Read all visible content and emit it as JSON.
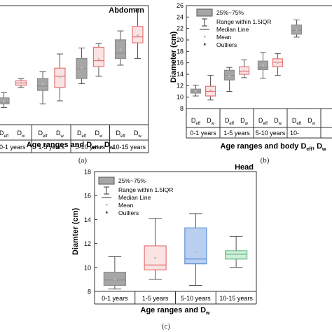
{
  "captions": [
    "(a)",
    "(b)",
    "(c)"
  ],
  "legend_items": {
    "box": "25%~75%",
    "whisker": "Range within 1.5IQR",
    "median": "Median Line",
    "mean": "Mean",
    "outliers": "Outliers"
  },
  "colors": {
    "gray": "#8c8c8c",
    "red": "#e57373",
    "blue": "#5b8fd6",
    "green": "#66c08a"
  },
  "chart_data": [
    {
      "type": "box",
      "title": "Abdomen",
      "ylabel": "",
      "xlabel_main": "Age ranges and D",
      "xlabel_sub1": "eff",
      "xlabel_mid": " , D",
      "xlabel_sub2": "w",
      "groups": [
        "0-1 years",
        "1-5 years",
        "5-10 years",
        "10-15 years"
      ],
      "subcategories": [
        "D_eff",
        "D_w"
      ],
      "ylim": [
        8,
        24
      ],
      "boxes": [
        {
          "group": "0-1 years",
          "measure": "D_eff",
          "color": "gray",
          "min": 10.3,
          "q1": 10.8,
          "median": 11.0,
          "q3": 11.6,
          "max": 12.3,
          "mean": 11.1
        },
        {
          "group": "0-1 years",
          "measure": "D_w",
          "color": "red",
          "min": 13.0,
          "q1": 13.3,
          "median": 13.6,
          "q3": 13.9,
          "max": 14.2,
          "mean": 13.6
        },
        {
          "group": "1-5 years",
          "measure": "D_eff",
          "color": "gray",
          "min": 10.8,
          "q1": 12.6,
          "median": 13.2,
          "q3": 14.2,
          "max": 15.1,
          "mean": 13.4
        },
        {
          "group": "1-5 years",
          "measure": "D_w",
          "color": "red",
          "min": 11.2,
          "q1": 13.0,
          "median": 14.5,
          "q3": 15.6,
          "max": 17.5,
          "mean": 14.4
        },
        {
          "group": "5-10 years",
          "measure": "D_eff",
          "color": "gray",
          "min": 13.5,
          "q1": 14.2,
          "median": 15.5,
          "q3": 16.9,
          "max": 18.3,
          "mean": 15.6
        },
        {
          "group": "5-10 years",
          "measure": "D_w",
          "color": "red",
          "min": 14.5,
          "q1": 15.8,
          "median": 16.6,
          "q3": 18.4,
          "max": 18.9,
          "mean": 16.8
        },
        {
          "group": "10-15 years",
          "measure": "D_eff",
          "color": "gray",
          "min": 16.0,
          "q1": 16.9,
          "median": 17.6,
          "q3": 19.4,
          "max": 20.6,
          "mean": 18.1
        },
        {
          "group": "10-15 years",
          "measure": "D_w",
          "color": "red",
          "min": 16.9,
          "q1": 19.0,
          "median": 19.8,
          "q3": 21.2,
          "max": 23.6,
          "mean": 20.0
        }
      ]
    },
    {
      "type": "box",
      "title": "",
      "ylabel": "Diameter (cm)",
      "xlabel_main": "Age ranges and body D",
      "xlabel_sub1": "eff",
      "xlabel_mid": ", D",
      "xlabel_sub2": "w",
      "groups": [
        "0-1 years",
        "1-5 years",
        "5-10 years",
        "10-"
      ],
      "subcategories": [
        "D_eff",
        "D_w"
      ],
      "ylim": [
        8,
        26
      ],
      "yticks": [
        8,
        10,
        12,
        14,
        16,
        18,
        20,
        22,
        24,
        26
      ],
      "boxes": [
        {
          "group": "0-1 years",
          "measure": "D_eff",
          "color": "gray",
          "min": 10.2,
          "q1": 10.7,
          "median": 11.0,
          "q3": 11.4,
          "max": 12.1,
          "mean": 11.0
        },
        {
          "group": "0-1 years",
          "measure": "D_w",
          "color": "red",
          "min": 9.5,
          "q1": 10.2,
          "median": 11.0,
          "q3": 11.9,
          "max": 13.8,
          "mean": 11.2
        },
        {
          "group": "1-5 years",
          "measure": "D_eff",
          "color": "gray",
          "min": 11.0,
          "q1": 13.0,
          "median": 13.8,
          "q3": 14.7,
          "max": 15.2,
          "mean": 13.7
        },
        {
          "group": "1-5 years",
          "measure": "D_w",
          "color": "red",
          "min": 13.4,
          "q1": 14.0,
          "median": 14.5,
          "q3": 15.3,
          "max": 16.5,
          "mean": 14.6
        },
        {
          "group": "5-10 years",
          "measure": "D_eff",
          "color": "gray",
          "min": 13.3,
          "q1": 14.8,
          "median": 15.2,
          "q3": 16.3,
          "max": 17.8,
          "mean": 15.5
        },
        {
          "group": "5-10 years",
          "measure": "D_w",
          "color": "red",
          "min": 13.8,
          "q1": 15.3,
          "median": 16.1,
          "q3": 16.7,
          "max": 17.6,
          "mean": 16.0
        },
        {
          "group": "10-",
          "measure": "D_eff",
          "color": "gray",
          "min": 20.5,
          "q1": 21.0,
          "median": 21.7,
          "q3": 22.6,
          "max": 23.5,
          "mean": 21.8
        }
      ]
    },
    {
      "type": "box",
      "title": "Head",
      "ylabel": "Diamter (cm)",
      "xlabel_main": "Age ranges and D",
      "xlabel_sub2": "w",
      "groups": [
        "0-1 years",
        "1-5 years",
        "5-10 years",
        "10-15 years"
      ],
      "ylim": [
        8,
        18
      ],
      "yticks": [
        8,
        10,
        12,
        14,
        16,
        18
      ],
      "boxes": [
        {
          "group": "0-1 years",
          "color": "gray",
          "min": 8.2,
          "q1": 8.5,
          "median": 8.95,
          "q3": 9.6,
          "max": 10.9,
          "mean": 9.0
        },
        {
          "group": "1-5 years",
          "color": "red",
          "min": 9.0,
          "q1": 9.8,
          "median": 10.2,
          "q3": 11.8,
          "max": 14.1,
          "mean": 10.8
        },
        {
          "group": "5-10 years",
          "color": "blue",
          "min": 8.5,
          "q1": 10.3,
          "median": 10.7,
          "q3": 13.3,
          "max": 14.5,
          "mean": 11.3
        },
        {
          "group": "10-15 years",
          "color": "green",
          "min": 10.0,
          "q1": 10.7,
          "median": 11.1,
          "q3": 11.4,
          "max": 12.6,
          "mean": 11.1
        }
      ]
    }
  ]
}
